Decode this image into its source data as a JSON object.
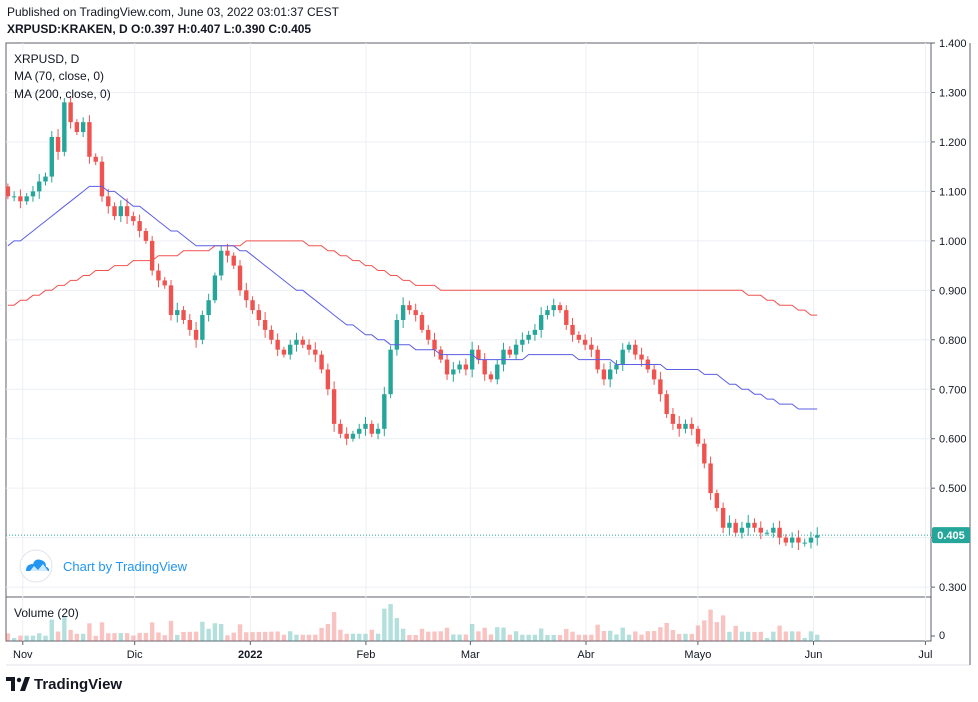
{
  "header": {
    "published": "Published on TradingView.com, June 03, 2022 03:01:37 CEST",
    "ohlc": "XRPUSD:KRAKEN, D  O:0.397 H:0.407 L:0.390 C:0.405"
  },
  "legend": {
    "symbol": "XRPUSD, D",
    "ma70": "MA (70, close, 0)",
    "ma200": "MA (200, close, 0)"
  },
  "watermark": "Chart by TradingView",
  "volume_label": "Volume (20)",
  "price_label": "0.405",
  "footer_brand": "TradingView",
  "colors": {
    "up": "#26a69a",
    "down": "#ef5350",
    "ma70": "#5b5fe3",
    "ma200": "#ef5350",
    "watermark": "#2196f3"
  },
  "chart_data": {
    "type": "candlestick",
    "symbol": "XRPUSD",
    "exchange": "KRAKEN",
    "interval": "D",
    "last": {
      "open": 0.397,
      "high": 0.407,
      "low": 0.39,
      "close": 0.405
    },
    "y_ticks": [
      "1.400",
      "1.300",
      "1.200",
      "1.100",
      "1.000",
      "0.900",
      "0.800",
      "0.700",
      "0.600",
      "0.500",
      "0.400",
      "0.300"
    ],
    "ylim": [
      0.28,
      1.4
    ],
    "volume_ticks": [
      "0"
    ],
    "x_ticks": [
      "Nov",
      "Dic",
      "2022",
      "Feb",
      "Mar",
      "Abr",
      "Mayo",
      "Jun",
      "Jul"
    ],
    "x_tick_dates": [
      "2021-11-01",
      "2021-12-01",
      "2022-01-01",
      "2022-02-01",
      "2022-03-01",
      "2022-04-01",
      "2022-05-01",
      "2022-06-01",
      "2022-07-01"
    ],
    "start_date": "2021-10-28",
    "closes": [
      1.09,
      1.09,
      1.08,
      1.09,
      1.1,
      1.12,
      1.13,
      1.21,
      1.18,
      1.28,
      1.24,
      1.22,
      1.24,
      1.17,
      1.16,
      1.09,
      1.07,
      1.05,
      1.07,
      1.05,
      1.04,
      1.02,
      1.0,
      0.94,
      0.92,
      0.91,
      0.85,
      0.86,
      0.84,
      0.82,
      0.8,
      0.85,
      0.88,
      0.93,
      0.98,
      0.97,
      0.95,
      0.9,
      0.88,
      0.86,
      0.84,
      0.82,
      0.8,
      0.78,
      0.77,
      0.79,
      0.8,
      0.79,
      0.78,
      0.77,
      0.74,
      0.7,
      0.63,
      0.61,
      0.6,
      0.61,
      0.62,
      0.63,
      0.61,
      0.62,
      0.69,
      0.78,
      0.84,
      0.87,
      0.86,
      0.85,
      0.82,
      0.8,
      0.78,
      0.76,
      0.73,
      0.74,
      0.75,
      0.74,
      0.78,
      0.76,
      0.73,
      0.72,
      0.75,
      0.78,
      0.77,
      0.79,
      0.8,
      0.81,
      0.82,
      0.85,
      0.86,
      0.87,
      0.86,
      0.83,
      0.81,
      0.8,
      0.79,
      0.78,
      0.74,
      0.72,
      0.74,
      0.75,
      0.78,
      0.79,
      0.77,
      0.76,
      0.74,
      0.72,
      0.69,
      0.65,
      0.63,
      0.62,
      0.63,
      0.62,
      0.59,
      0.55,
      0.49,
      0.46,
      0.42,
      0.43,
      0.41,
      0.42,
      0.43,
      0.42,
      0.41,
      0.41,
      0.42,
      0.4,
      0.39,
      0.4,
      0.39,
      0.39,
      0.4,
      0.405
    ],
    "ma70": [
      0.99,
      1.0,
      1.0,
      1.01,
      1.02,
      1.03,
      1.04,
      1.05,
      1.06,
      1.07,
      1.08,
      1.09,
      1.1,
      1.11,
      1.11,
      1.11,
      1.1,
      1.1,
      1.09,
      1.08,
      1.07,
      1.07,
      1.06,
      1.05,
      1.04,
      1.03,
      1.02,
      1.02,
      1.01,
      1.0,
      0.99,
      0.99,
      0.99,
      0.99,
      0.99,
      0.99,
      0.99,
      0.98,
      0.98,
      0.97,
      0.96,
      0.95,
      0.94,
      0.93,
      0.92,
      0.91,
      0.9,
      0.9,
      0.89,
      0.88,
      0.87,
      0.86,
      0.85,
      0.84,
      0.83,
      0.83,
      0.82,
      0.81,
      0.81,
      0.8,
      0.8,
      0.79,
      0.79,
      0.79,
      0.79,
      0.78,
      0.78,
      0.78,
      0.78,
      0.77,
      0.77,
      0.77,
      0.77,
      0.77,
      0.77,
      0.76,
      0.76,
      0.76,
      0.76,
      0.76,
      0.76,
      0.76,
      0.76,
      0.77,
      0.77,
      0.77,
      0.77,
      0.77,
      0.77,
      0.77,
      0.77,
      0.76,
      0.76,
      0.76,
      0.76,
      0.76,
      0.76,
      0.75,
      0.75,
      0.75,
      0.75,
      0.75,
      0.75,
      0.75,
      0.75,
      0.74,
      0.74,
      0.74,
      0.74,
      0.74,
      0.74,
      0.73,
      0.73,
      0.73,
      0.72,
      0.71,
      0.71,
      0.7,
      0.7,
      0.69,
      0.69,
      0.68,
      0.68,
      0.67,
      0.67,
      0.67,
      0.66,
      0.66,
      0.66,
      0.66
    ],
    "ma200": [
      0.87,
      0.87,
      0.88,
      0.88,
      0.89,
      0.89,
      0.9,
      0.9,
      0.91,
      0.91,
      0.92,
      0.92,
      0.93,
      0.93,
      0.94,
      0.94,
      0.94,
      0.95,
      0.95,
      0.95,
      0.96,
      0.96,
      0.96,
      0.96,
      0.97,
      0.97,
      0.97,
      0.97,
      0.98,
      0.98,
      0.98,
      0.98,
      0.98,
      0.99,
      0.99,
      0.99,
      0.99,
      0.99,
      1.0,
      1.0,
      1.0,
      1.0,
      1.0,
      1.0,
      1.0,
      1.0,
      1.0,
      1.0,
      0.99,
      0.99,
      0.99,
      0.98,
      0.98,
      0.97,
      0.97,
      0.96,
      0.96,
      0.95,
      0.95,
      0.94,
      0.94,
      0.93,
      0.93,
      0.92,
      0.92,
      0.91,
      0.91,
      0.91,
      0.91,
      0.9,
      0.9,
      0.9,
      0.9,
      0.9,
      0.9,
      0.9,
      0.9,
      0.9,
      0.9,
      0.9,
      0.9,
      0.9,
      0.9,
      0.9,
      0.9,
      0.9,
      0.9,
      0.9,
      0.9,
      0.9,
      0.9,
      0.9,
      0.9,
      0.9,
      0.9,
      0.9,
      0.9,
      0.9,
      0.9,
      0.9,
      0.9,
      0.9,
      0.9,
      0.9,
      0.9,
      0.9,
      0.9,
      0.9,
      0.9,
      0.9,
      0.9,
      0.9,
      0.9,
      0.9,
      0.9,
      0.9,
      0.9,
      0.9,
      0.89,
      0.89,
      0.89,
      0.88,
      0.88,
      0.87,
      0.87,
      0.87,
      0.86,
      0.86,
      0.85,
      0.85
    ]
  }
}
